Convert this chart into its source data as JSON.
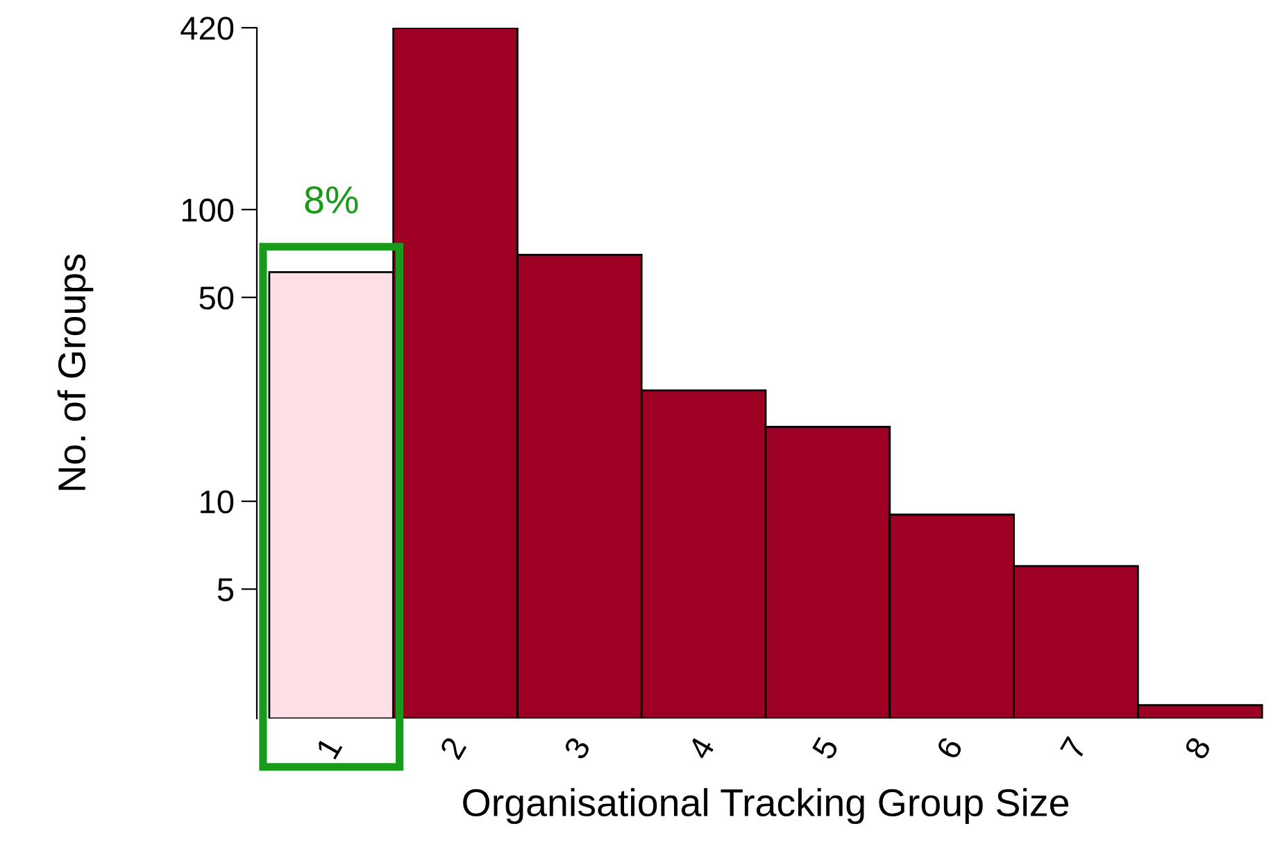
{
  "chart_data": {
    "type": "bar",
    "xlabel": "Organisational Tracking Group Size",
    "ylabel": "No. of Groups",
    "categories": [
      "1",
      "2",
      "3",
      "4",
      "5",
      "6",
      "7",
      "8"
    ],
    "values": [
      61,
      420,
      70,
      24,
      18,
      9,
      6,
      2
    ],
    "colors": [
      "#fde0e6",
      "#9e0024",
      "#9e0024",
      "#9e0024",
      "#9e0024",
      "#9e0024",
      "#9e0024",
      "#9e0024"
    ],
    "log": "y",
    "ylim": [
      1.8,
      420
    ],
    "yticks": [
      5,
      10,
      50,
      100,
      420
    ],
    "grid": false,
    "legend": false,
    "annotations": [
      "8%"
    ]
  }
}
